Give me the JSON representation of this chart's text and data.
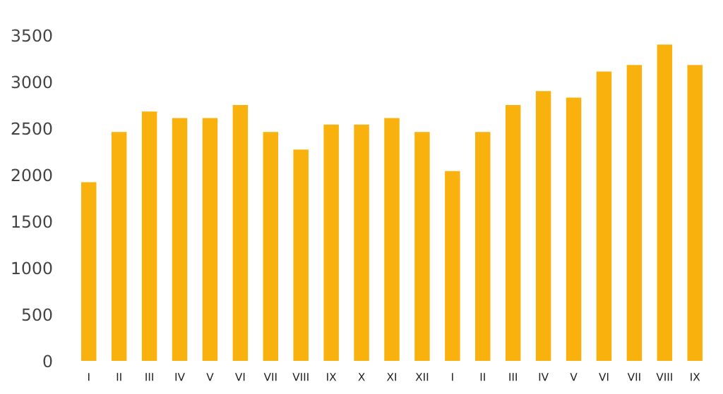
{
  "chart_data": {
    "type": "bar",
    "categories": [
      "I",
      "II",
      "III",
      "IV",
      "V",
      "VI",
      "VII",
      "VIII",
      "IX",
      "X",
      "XI",
      "XII",
      "I",
      "II",
      "III",
      "IV",
      "V",
      "VI",
      "VII",
      "VIII",
      "IX"
    ],
    "values": [
      1920,
      2460,
      2680,
      2610,
      2610,
      2750,
      2460,
      2270,
      2540,
      2540,
      2610,
      2460,
      2040,
      2460,
      2750,
      2900,
      2830,
      3110,
      3180,
      3400,
      3180
    ],
    "color": "#f8b10d",
    "ylim": [
      0,
      3500
    ],
    "yticks": [
      0,
      500,
      1000,
      1500,
      2000,
      2500,
      3000,
      3500
    ],
    "grid": false,
    "legend": false
  }
}
